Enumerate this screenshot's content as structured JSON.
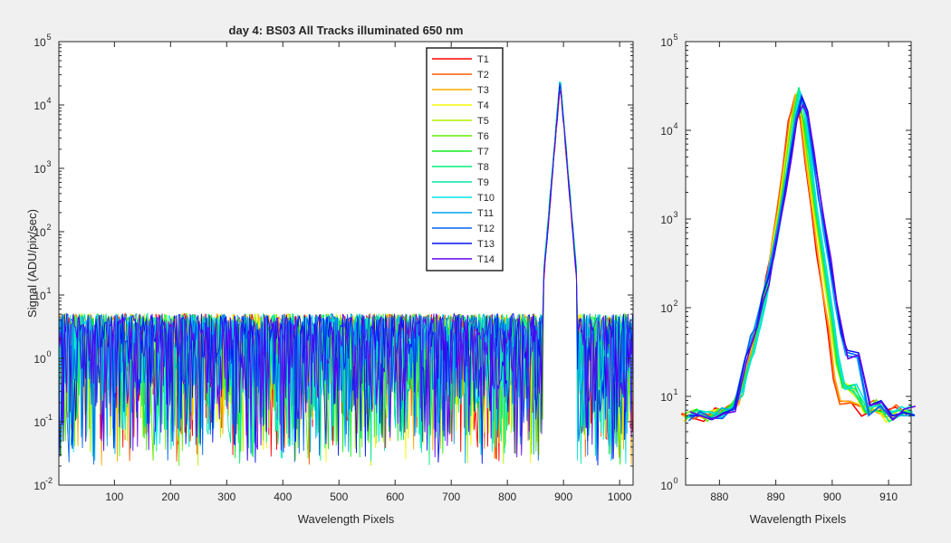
{
  "chart_data": [
    {
      "type": "line",
      "title": "day 4: BS03   All Tracks illuminated   650 nm",
      "xlabel": "Wavelength Pixels",
      "ylabel": "Signal (ADU/pix/sec)",
      "xlim": [
        1,
        1024
      ],
      "ylim": [
        0.01,
        100000
      ],
      "yscale": "log",
      "grid": false,
      "legend_position": "top-right",
      "x_ticks": [
        100,
        200,
        300,
        400,
        500,
        600,
        700,
        800,
        900,
        1000
      ],
      "y_ticks": [
        {
          "base": "10",
          "exp": "-2"
        },
        {
          "base": "10",
          "exp": "-1"
        },
        {
          "base": "10",
          "exp": "0"
        },
        {
          "base": "10",
          "exp": "1"
        },
        {
          "base": "10",
          "exp": "2"
        },
        {
          "base": "10",
          "exp": "3"
        },
        {
          "base": "10",
          "exp": "4"
        },
        {
          "base": "10",
          "exp": "5"
        }
      ],
      "noise_floor_range": [
        0.02,
        6
      ],
      "peak": {
        "x": 894,
        "y": 25000
      },
      "series": [
        {
          "name": "T1",
          "color": "#ff0000",
          "peak": 21000
        },
        {
          "name": "T2",
          "color": "#ff5a00",
          "peak": 22000
        },
        {
          "name": "T3",
          "color": "#ffaa00",
          "peak": 22500
        },
        {
          "name": "T4",
          "color": "#f5f500",
          "peak": 23000
        },
        {
          "name": "T5",
          "color": "#b4f000",
          "peak": 24000
        },
        {
          "name": "T6",
          "color": "#64ec00",
          "peak": 26000
        },
        {
          "name": "T7",
          "color": "#14ee1e",
          "peak": 28000
        },
        {
          "name": "T8",
          "color": "#00f078",
          "peak": 29000
        },
        {
          "name": "T9",
          "color": "#00e6aa",
          "peak": 27000
        },
        {
          "name": "T10",
          "color": "#00e6e6",
          "peak": 26000
        },
        {
          "name": "T11",
          "color": "#00a5f0",
          "peak": 25000
        },
        {
          "name": "T12",
          "color": "#0064f0",
          "peak": 24000
        },
        {
          "name": "T13",
          "color": "#0014f0",
          "peak": 23000
        },
        {
          "name": "T14",
          "color": "#6400f0",
          "peak": 22000
        }
      ]
    },
    {
      "type": "line",
      "title": "",
      "xlabel": "Wavelength Pixels",
      "ylabel": "",
      "xlim": [
        874,
        914
      ],
      "ylim": [
        1,
        100000
      ],
      "yscale": "log",
      "grid": false,
      "x_ticks": [
        880,
        890,
        900,
        910
      ],
      "y_ticks": [
        {
          "base": "10",
          "exp": "0"
        },
        {
          "base": "10",
          "exp": "1"
        },
        {
          "base": "10",
          "exp": "2"
        },
        {
          "base": "10",
          "exp": "3"
        },
        {
          "base": "10",
          "exp": "4"
        },
        {
          "base": "10",
          "exp": "5"
        }
      ],
      "profile_x": [
        874,
        876,
        878,
        880,
        882,
        884,
        885,
        886,
        887,
        888,
        889,
        890,
        891,
        892,
        893,
        894,
        895,
        896,
        897,
        898,
        899,
        900,
        901,
        902,
        904,
        906,
        908,
        910,
        912,
        914
      ],
      "profile_y": [
        6,
        6.5,
        6,
        6.5,
        7,
        12,
        20,
        35,
        65,
        120,
        260,
        600,
        1500,
        4000,
        12000,
        25000,
        14000,
        4500,
        1500,
        550,
        190,
        70,
        25,
        14,
        12,
        7,
        8,
        6,
        7,
        7
      ]
    }
  ]
}
